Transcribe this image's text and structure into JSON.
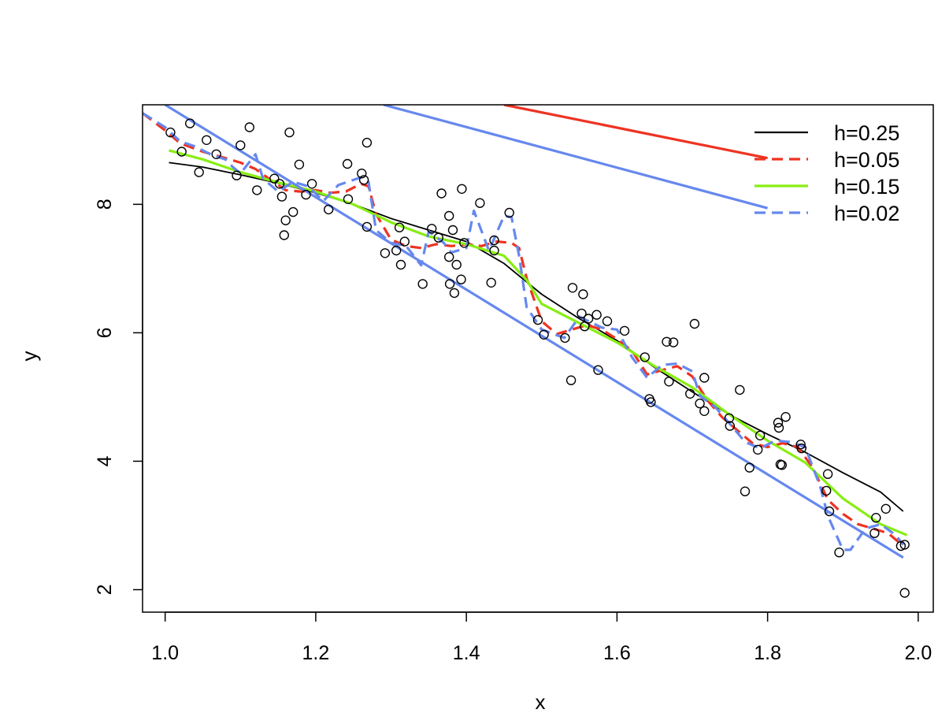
{
  "chart_data": {
    "type": "scatter",
    "title": "",
    "xlabel": "x",
    "ylabel": "y",
    "xlim": [
      0.97,
      2.02
    ],
    "ylim": [
      1.65,
      9.55
    ],
    "xticks": [
      "1.0",
      "1.2",
      "1.4",
      "1.6",
      "1.8",
      "2.0"
    ],
    "yticks": [
      "2",
      "4",
      "6",
      "8"
    ],
    "grid": false,
    "legend_position": "top-right",
    "points": [
      [
        1.007,
        9.12
      ],
      [
        1.022,
        8.82
      ],
      [
        1.033,
        9.26
      ],
      [
        1.045,
        8.5
      ],
      [
        1.055,
        9.0
      ],
      [
        1.068,
        8.78
      ],
      [
        1.095,
        8.45
      ],
      [
        1.1,
        8.92
      ],
      [
        1.112,
        9.2
      ],
      [
        1.122,
        8.22
      ],
      [
        1.145,
        8.4
      ],
      [
        1.152,
        8.32
      ],
      [
        1.155,
        8.12
      ],
      [
        1.158,
        7.52
      ],
      [
        1.16,
        7.75
      ],
      [
        1.165,
        9.12
      ],
      [
        1.17,
        7.88
      ],
      [
        1.178,
        8.62
      ],
      [
        1.187,
        8.15
      ],
      [
        1.195,
        8.32
      ],
      [
        1.217,
        7.92
      ],
      [
        1.242,
        8.63
      ],
      [
        1.243,
        8.08
      ],
      [
        1.261,
        8.48
      ],
      [
        1.264,
        8.38
      ],
      [
        1.268,
        7.65
      ],
      [
        1.268,
        8.96
      ],
      [
        1.292,
        7.24
      ],
      [
        1.307,
        7.28
      ],
      [
        1.311,
        7.64
      ],
      [
        1.313,
        7.06
      ],
      [
        1.318,
        7.42
      ],
      [
        1.342,
        6.76
      ],
      [
        1.354,
        7.62
      ],
      [
        1.363,
        7.48
      ],
      [
        1.367,
        8.17
      ],
      [
        1.377,
        7.82
      ],
      [
        1.377,
        7.18
      ],
      [
        1.378,
        6.76
      ],
      [
        1.382,
        7.6
      ],
      [
        1.384,
        6.62
      ],
      [
        1.387,
        7.06
      ],
      [
        1.393,
        6.83
      ],
      [
        1.394,
        8.24
      ],
      [
        1.397,
        7.4
      ],
      [
        1.418,
        8.02
      ],
      [
        1.433,
        6.78
      ],
      [
        1.437,
        7.44
      ],
      [
        1.437,
        7.28
      ],
      [
        1.457,
        7.87
      ],
      [
        1.495,
        6.2
      ],
      [
        1.503,
        5.97
      ],
      [
        1.531,
        5.92
      ],
      [
        1.539,
        5.26
      ],
      [
        1.541,
        6.7
      ],
      [
        1.553,
        6.3
      ],
      [
        1.555,
        6.6
      ],
      [
        1.557,
        6.1
      ],
      [
        1.562,
        6.22
      ],
      [
        1.573,
        6.28
      ],
      [
        1.575,
        5.42
      ],
      [
        1.587,
        6.18
      ],
      [
        1.61,
        6.03
      ],
      [
        1.637,
        5.62
      ],
      [
        1.643,
        4.97
      ],
      [
        1.645,
        4.92
      ],
      [
        1.666,
        5.86
      ],
      [
        1.669,
        5.24
      ],
      [
        1.675,
        5.85
      ],
      [
        1.697,
        5.05
      ],
      [
        1.703,
        6.14
      ],
      [
        1.71,
        4.9
      ],
      [
        1.716,
        4.78
      ],
      [
        1.716,
        5.3
      ],
      [
        1.749,
        4.67
      ],
      [
        1.75,
        4.55
      ],
      [
        1.763,
        5.11
      ],
      [
        1.77,
        3.53
      ],
      [
        1.776,
        3.9
      ],
      [
        1.787,
        4.18
      ],
      [
        1.79,
        4.4
      ],
      [
        1.814,
        4.6
      ],
      [
        1.815,
        4.52
      ],
      [
        1.817,
        3.95
      ],
      [
        1.819,
        3.94
      ],
      [
        1.824,
        4.69
      ],
      [
        1.844,
        4.26
      ],
      [
        1.845,
        4.2
      ],
      [
        1.878,
        3.54
      ],
      [
        1.88,
        3.8
      ],
      [
        1.882,
        3.22
      ],
      [
        1.895,
        2.58
      ],
      [
        1.942,
        2.88
      ],
      [
        1.944,
        3.12
      ],
      [
        1.957,
        3.26
      ],
      [
        1.977,
        2.68
      ],
      [
        1.982,
        2.7
      ],
      [
        1.982,
        1.95
      ]
    ],
    "series": [
      {
        "name": "h=0.25",
        "color": "#000000",
        "dash": "solid",
        "points": [
          [
            1.005,
            8.65
          ],
          [
            1.05,
            8.58
          ],
          [
            1.1,
            8.46
          ],
          [
            1.15,
            8.33
          ],
          [
            1.2,
            8.18
          ],
          [
            1.25,
            8.0
          ],
          [
            1.3,
            7.78
          ],
          [
            1.35,
            7.6
          ],
          [
            1.4,
            7.42
          ],
          [
            1.45,
            7.08
          ],
          [
            1.5,
            6.6
          ],
          [
            1.55,
            6.22
          ],
          [
            1.6,
            5.88
          ],
          [
            1.65,
            5.46
          ],
          [
            1.7,
            5.08
          ],
          [
            1.75,
            4.72
          ],
          [
            1.8,
            4.42
          ],
          [
            1.85,
            4.14
          ],
          [
            1.9,
            3.82
          ],
          [
            1.95,
            3.52
          ],
          [
            1.98,
            3.22
          ]
        ]
      },
      {
        "name": "h=0.05",
        "color": "#ee3322",
        "dash": "dashed",
        "points": [
          [
            0.97,
            9.42
          ],
          [
            1.0,
            9.15
          ],
          [
            1.02,
            8.95
          ],
          [
            1.05,
            8.82
          ],
          [
            1.08,
            8.72
          ],
          [
            1.1,
            8.65
          ],
          [
            1.12,
            8.55
          ],
          [
            1.14,
            8.38
          ],
          [
            1.16,
            8.22
          ],
          [
            1.18,
            8.2
          ],
          [
            1.2,
            8.22
          ],
          [
            1.22,
            8.18
          ],
          [
            1.24,
            8.2
          ],
          [
            1.26,
            8.32
          ],
          [
            1.27,
            8.28
          ],
          [
            1.28,
            7.85
          ],
          [
            1.3,
            7.45
          ],
          [
            1.32,
            7.35
          ],
          [
            1.34,
            7.32
          ],
          [
            1.36,
            7.38
          ],
          [
            1.38,
            7.35
          ],
          [
            1.4,
            7.38
          ],
          [
            1.42,
            7.35
          ],
          [
            1.44,
            7.42
          ],
          [
            1.46,
            7.4
          ],
          [
            1.47,
            7.32
          ],
          [
            1.48,
            6.85
          ],
          [
            1.5,
            6.18
          ],
          [
            1.52,
            5.98
          ],
          [
            1.54,
            6.05
          ],
          [
            1.56,
            6.12
          ],
          [
            1.58,
            6.05
          ],
          [
            1.6,
            5.9
          ],
          [
            1.62,
            5.72
          ],
          [
            1.64,
            5.35
          ],
          [
            1.66,
            5.42
          ],
          [
            1.68,
            5.48
          ],
          [
            1.7,
            5.32
          ],
          [
            1.72,
            4.95
          ],
          [
            1.74,
            4.68
          ],
          [
            1.76,
            4.48
          ],
          [
            1.78,
            4.28
          ],
          [
            1.8,
            4.22
          ],
          [
            1.82,
            4.28
          ],
          [
            1.84,
            4.22
          ],
          [
            1.86,
            3.9
          ],
          [
            1.88,
            3.4
          ],
          [
            1.9,
            3.18
          ],
          [
            1.92,
            3.02
          ],
          [
            1.94,
            2.95
          ],
          [
            1.96,
            2.88
          ],
          [
            1.98,
            2.68
          ]
        ]
      },
      {
        "name": "h=0.15",
        "color": "#88ee11",
        "dash": "solid",
        "points": [
          [
            1.005,
            8.84
          ],
          [
            1.05,
            8.7
          ],
          [
            1.1,
            8.5
          ],
          [
            1.15,
            8.34
          ],
          [
            1.2,
            8.2
          ],
          [
            1.25,
            8.0
          ],
          [
            1.3,
            7.72
          ],
          [
            1.35,
            7.5
          ],
          [
            1.4,
            7.38
          ],
          [
            1.45,
            7.2
          ],
          [
            1.48,
            6.82
          ],
          [
            1.5,
            6.45
          ],
          [
            1.55,
            6.15
          ],
          [
            1.6,
            5.85
          ],
          [
            1.65,
            5.48
          ],
          [
            1.7,
            5.15
          ],
          [
            1.75,
            4.72
          ],
          [
            1.8,
            4.32
          ],
          [
            1.85,
            3.98
          ],
          [
            1.9,
            3.42
          ],
          [
            1.95,
            3.02
          ],
          [
            1.985,
            2.85
          ]
        ]
      },
      {
        "name": "h=0.02",
        "color": "#6688ee",
        "dash": "dashed",
        "points": [
          [
            0.97,
            9.42
          ],
          [
            1.0,
            9.2
          ],
          [
            1.02,
            8.98
          ],
          [
            1.04,
            8.9
          ],
          [
            1.06,
            8.78
          ],
          [
            1.08,
            8.7
          ],
          [
            1.09,
            8.58
          ],
          [
            1.1,
            8.48
          ],
          [
            1.12,
            8.78
          ],
          [
            1.13,
            8.4
          ],
          [
            1.15,
            8.2
          ],
          [
            1.17,
            8.35
          ],
          [
            1.19,
            8.28
          ],
          [
            1.21,
            8.05
          ],
          [
            1.23,
            8.3
          ],
          [
            1.26,
            8.42
          ],
          [
            1.27,
            8.35
          ],
          [
            1.28,
            7.6
          ],
          [
            1.3,
            7.4
          ],
          [
            1.32,
            7.35
          ],
          [
            1.34,
            7.05
          ],
          [
            1.35,
            7.58
          ],
          [
            1.37,
            7.4
          ],
          [
            1.38,
            7.25
          ],
          [
            1.4,
            7.32
          ],
          [
            1.41,
            7.9
          ],
          [
            1.43,
            7.28
          ],
          [
            1.45,
            7.82
          ],
          [
            1.46,
            7.8
          ],
          [
            1.47,
            7.2
          ],
          [
            1.48,
            6.4
          ],
          [
            1.5,
            6.05
          ],
          [
            1.53,
            5.92
          ],
          [
            1.55,
            6.25
          ],
          [
            1.58,
            6.08
          ],
          [
            1.6,
            6.05
          ],
          [
            1.62,
            5.62
          ],
          [
            1.64,
            5.3
          ],
          [
            1.66,
            5.5
          ],
          [
            1.68,
            5.52
          ],
          [
            1.7,
            5.4
          ],
          [
            1.71,
            5.02
          ],
          [
            1.73,
            4.85
          ],
          [
            1.75,
            4.58
          ],
          [
            1.77,
            4.3
          ],
          [
            1.79,
            4.2
          ],
          [
            1.81,
            4.32
          ],
          [
            1.83,
            4.3
          ],
          [
            1.85,
            4.22
          ],
          [
            1.87,
            3.6
          ],
          [
            1.88,
            3.15
          ],
          [
            1.9,
            2.62
          ],
          [
            1.91,
            2.62
          ],
          [
            1.93,
            2.95
          ],
          [
            1.95,
            3.02
          ],
          [
            1.97,
            2.85
          ],
          [
            1.98,
            2.7
          ]
        ]
      },
      {
        "name": "",
        "color": "#ee3322",
        "dash": "solid",
        "points": [
          [
            1.45,
            9.55
          ],
          [
            1.8,
            8.72
          ]
        ]
      },
      {
        "name": "",
        "color": "#6688ee",
        "dash": "solid",
        "points": [
          [
            1.29,
            9.55
          ],
          [
            1.8,
            7.94
          ]
        ]
      },
      {
        "name": "",
        "color": "#6688ee",
        "dash": "solid",
        "points": [
          [
            1.0,
            9.55
          ],
          [
            1.98,
            2.5
          ]
        ]
      }
    ]
  }
}
